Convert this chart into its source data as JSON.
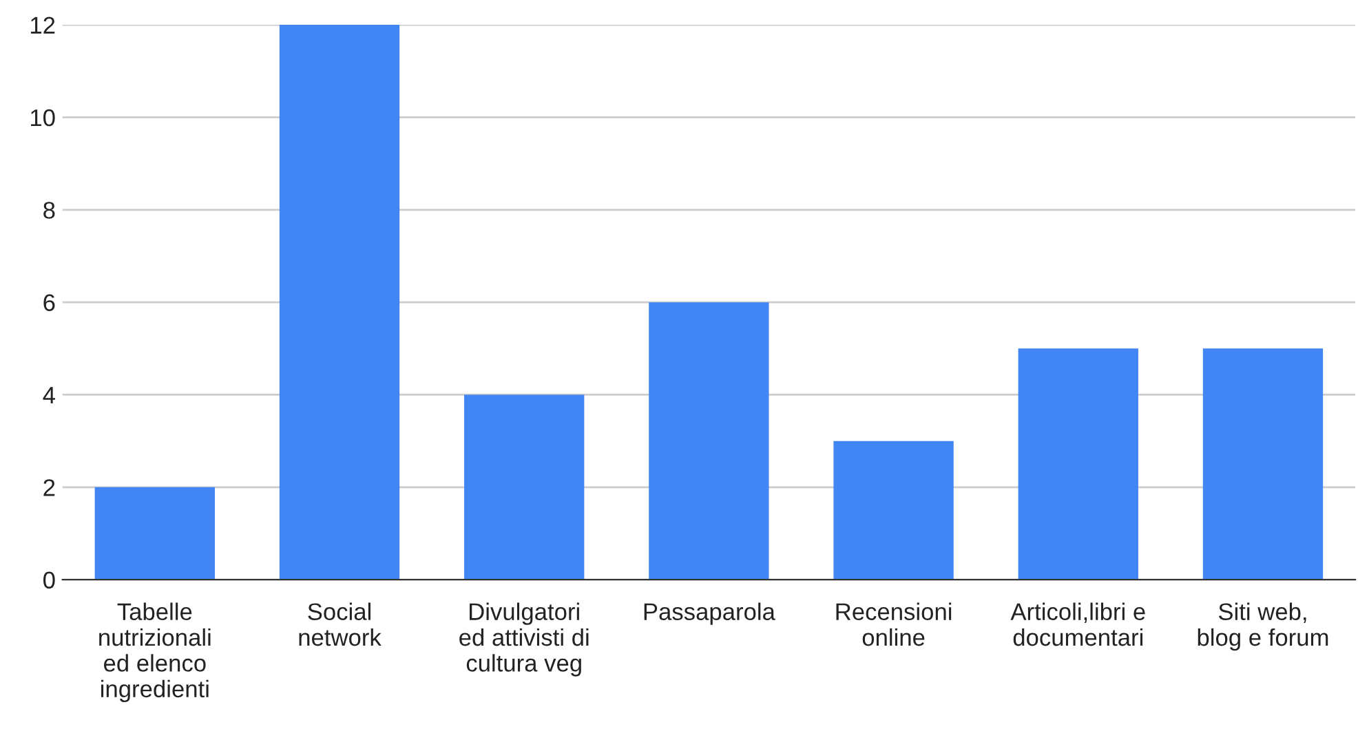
{
  "chart_data": {
    "type": "bar",
    "categories": [
      "Tabelle\nnutrizionali\ned elenco\ningredienti",
      "Social\nnetwork",
      "Divulgatori\ned attivisti di\ncultura veg",
      "Passaparola",
      "Recensioni\nonline",
      "Articoli,libri e\ndocumentari",
      "Siti web,\nblog e forum"
    ],
    "values": [
      2,
      12,
      4,
      6,
      3,
      5,
      5
    ],
    "color": "#4285f4",
    "ylim": [
      0,
      12
    ],
    "yticks": [
      0,
      2,
      4,
      6,
      8,
      10,
      12
    ],
    "grid": "y",
    "legend": false
  }
}
